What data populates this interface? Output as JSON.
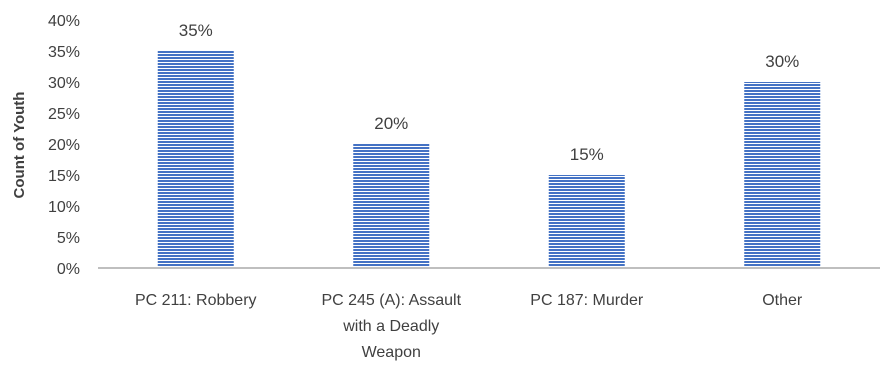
{
  "chart_data": {
    "type": "bar",
    "title": "",
    "xlabel": "",
    "ylabel": "Count of Youth",
    "categories": [
      [
        "PC 211: Robbery"
      ],
      [
        "PC 245 (A): Assault",
        "with a Deadly",
        "Weapon"
      ],
      [
        "PC 187: Murder"
      ],
      [
        "Other"
      ]
    ],
    "values": [
      35,
      20,
      15,
      30
    ],
    "data_labels": [
      "35%",
      "20%",
      "15%",
      "30%"
    ],
    "ylim": [
      0,
      40
    ],
    "yticks": [
      {
        "value": 0,
        "label": "0%"
      },
      {
        "value": 5,
        "label": "5%"
      },
      {
        "value": 10,
        "label": "10%"
      },
      {
        "value": 15,
        "label": "15%"
      },
      {
        "value": 20,
        "label": "20%"
      },
      {
        "value": 25,
        "label": "25%"
      },
      {
        "value": 30,
        "label": "30%"
      },
      {
        "value": 35,
        "label": "35%"
      },
      {
        "value": 40,
        "label": "40%"
      }
    ],
    "grid": false,
    "legend": "none",
    "colors": {
      "bar_fill": "#4472c4",
      "bar_stripe": "#ffffff",
      "axis": "#bfbfbf"
    }
  }
}
